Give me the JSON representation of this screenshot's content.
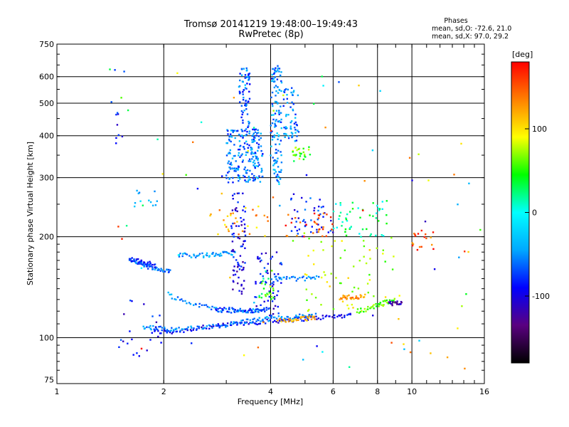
{
  "chart_data": {
    "type": "scatter",
    "title": "Tromsø 20141219 19:48:00–19:49:43",
    "subtitle": "RwPretec (8p)",
    "xlabel": "Frequency [MHz]",
    "ylabel": "Stationary phase Virtual Height [km]",
    "x_scale": "log",
    "y_scale": "log",
    "xlim": [
      1,
      16
    ],
    "ylim": [
      73,
      750
    ],
    "x_ticks": [
      1,
      2,
      4,
      6,
      8,
      10,
      16
    ],
    "x_tick_labels": [
      "1",
      "2",
      "4",
      "6",
      "8",
      "10",
      "16"
    ],
    "y_ticks": [
      75,
      100,
      200,
      300,
      400,
      500,
      600,
      750
    ],
    "y_tick_labels": [
      "75",
      "100",
      "200",
      "300",
      "400",
      "500",
      "600",
      "750"
    ],
    "grid": true,
    "colorbar": {
      "label": "[deg]",
      "range": [
        -180,
        180
      ],
      "ticks": [
        100,
        0,
        -100
      ],
      "tick_labels": [
        "100",
        "0",
        "-100"
      ],
      "colormap": [
        "#000000",
        "#5a0080",
        "#0000ff",
        "#00a8ff",
        "#00ffff",
        "#00ff00",
        "#ffff00",
        "#ff8000",
        "#ff0000"
      ]
    },
    "stats": {
      "title": "Phases",
      "line1": "mean, sd,O: -72.6, 21.0",
      "line2": "mean, sd,X:  97.0, 29.2"
    },
    "series": [
      {
        "type": "trace",
        "x": [
          1.85,
          2.1,
          2.4,
          2.8,
          3.2,
          3.6,
          4.0,
          4.5,
          5.0,
          5.6,
          6.2,
          6.8
        ],
        "y": [
          104,
          104,
          106,
          108,
          110,
          111,
          112,
          113,
          114,
          115,
          116,
          117
        ],
        "phase": -95
      },
      {
        "type": "trace",
        "x": [
          1.75,
          1.9,
          2.05,
          2.2,
          2.5,
          2.8,
          3.1,
          3.4,
          3.7,
          4.0,
          4.4,
          4.9,
          5.4
        ],
        "y": [
          108,
          107,
          106,
          106,
          107,
          108,
          110,
          112,
          113,
          114,
          115,
          116,
          117
        ],
        "phase": -55
      },
      {
        "type": "trace",
        "x": [
          2.05,
          2.3,
          2.6,
          2.9,
          3.2,
          3.5,
          3.8
        ],
        "y": [
          135,
          128,
          124,
          121,
          120,
          120,
          120
        ],
        "phase": -50
      },
      {
        "type": "trace",
        "x": [
          2.8,
          3.1,
          3.4,
          3.7,
          4.0
        ],
        "y": [
          122,
          121,
          120,
          121,
          122
        ],
        "phase": -78
      },
      {
        "type": "trace",
        "x": [
          1.6,
          1.7,
          1.8,
          1.9,
          2.0,
          2.1
        ],
        "y": [
          170,
          167,
          163,
          160,
          158,
          157
        ],
        "phase": -60
      },
      {
        "type": "trace",
        "x": [
          1.6,
          1.7,
          1.8,
          1.9
        ],
        "y": [
          172,
          170,
          167,
          163
        ],
        "phase": -85
      },
      {
        "type": "trace",
        "x": [
          2.2,
          2.4,
          2.6,
          2.8,
          3.0,
          3.2
        ],
        "y": [
          177,
          176,
          176,
          177,
          178,
          180
        ],
        "phase": -45
      },
      {
        "type": "trace",
        "x": [
          4.1,
          4.5,
          5.0,
          5.5
        ],
        "y": [
          150,
          150,
          150,
          151
        ],
        "phase": -55
      },
      {
        "type": "trace",
        "x": [
          6.3,
          6.6,
          7.0,
          7.4
        ],
        "y": [
          132,
          132,
          132,
          133
        ],
        "phase": 130
      },
      {
        "type": "trace",
        "x": [
          7.0,
          7.5,
          8.0,
          8.5,
          9.0
        ],
        "y": [
          120,
          122,
          125,
          128,
          130
        ],
        "phase": 60
      },
      {
        "type": "trace",
        "x": [
          8.6,
          9.0,
          9.4
        ],
        "y": [
          126,
          127,
          128
        ],
        "phase": -120
      },
      {
        "type": "trace",
        "x": [
          4.2,
          4.6,
          5.0,
          5.4
        ],
        "y": [
          112,
          113,
          114,
          115
        ],
        "phase": 120
      },
      {
        "type": "cluster",
        "x": [
          3.0,
          3.8
        ],
        "y": [
          290,
          420
        ],
        "phase": -60,
        "n": 200
      },
      {
        "type": "cluster",
        "x": [
          3.25,
          3.5
        ],
        "y": [
          400,
          640
        ],
        "phase": -65,
        "n": 70
      },
      {
        "type": "cluster",
        "x": [
          4.0,
          4.3
        ],
        "y": [
          290,
          650
        ],
        "phase": -50,
        "n": 120
      },
      {
        "type": "cluster",
        "x": [
          4.35,
          4.8
        ],
        "y": [
          380,
          560
        ],
        "phase": -55,
        "n": 60
      },
      {
        "type": "cluster",
        "x": [
          4.6,
          5.2
        ],
        "y": [
          340,
          370
        ],
        "phase": 60,
        "n": 25
      },
      {
        "type": "cluster",
        "x": [
          3.1,
          3.4
        ],
        "y": [
          135,
          270
        ],
        "phase": -100,
        "n": 80
      },
      {
        "type": "cluster",
        "x": [
          3.6,
          4.3
        ],
        "y": [
          115,
          180
        ],
        "phase": -90,
        "n": 60
      },
      {
        "type": "cluster",
        "x": [
          3.7,
          4.1
        ],
        "y": [
          130,
          160
        ],
        "phase": 40,
        "n": 25
      },
      {
        "type": "cluster",
        "x": [
          4.5,
          6.0
        ],
        "y": [
          200,
          270
        ],
        "phase": -80,
        "n": 45
      },
      {
        "type": "cluster",
        "x": [
          4.4,
          6.0
        ],
        "y": [
          200,
          235
        ],
        "phase": 150,
        "n": 30
      },
      {
        "type": "cluster",
        "x": [
          2.7,
          4.0
        ],
        "y": [
          200,
          250
        ],
        "phase": 120,
        "n": 30
      },
      {
        "type": "cluster",
        "x": [
          6.0,
          8.5
        ],
        "y": [
          200,
          260
        ],
        "phase": 20,
        "n": 50
      },
      {
        "type": "cluster",
        "x": [
          5.0,
          9.0
        ],
        "y": [
          120,
          200
        ],
        "phase": 80,
        "n": 60
      },
      {
        "type": "cluster",
        "x": [
          1.5,
          2.0
        ],
        "y": [
          85,
          130
        ],
        "phase": -90,
        "n": 20
      },
      {
        "type": "cluster",
        "x": [
          1.4,
          16.0
        ],
        "y": [
          80,
          700
        ],
        "phase": 30,
        "n": 90
      },
      {
        "type": "cluster",
        "x": [
          10.0,
          11.5
        ],
        "y": [
          180,
          210
        ],
        "phase": 150,
        "n": 18
      },
      {
        "type": "cluster",
        "x": [
          1.45,
          1.55
        ],
        "y": [
          330,
          640
        ],
        "phase": -80,
        "n": 10
      },
      {
        "type": "cluster",
        "x": [
          1.65,
          1.95
        ],
        "y": [
          245,
          275
        ],
        "phase": -40,
        "n": 12
      }
    ]
  }
}
